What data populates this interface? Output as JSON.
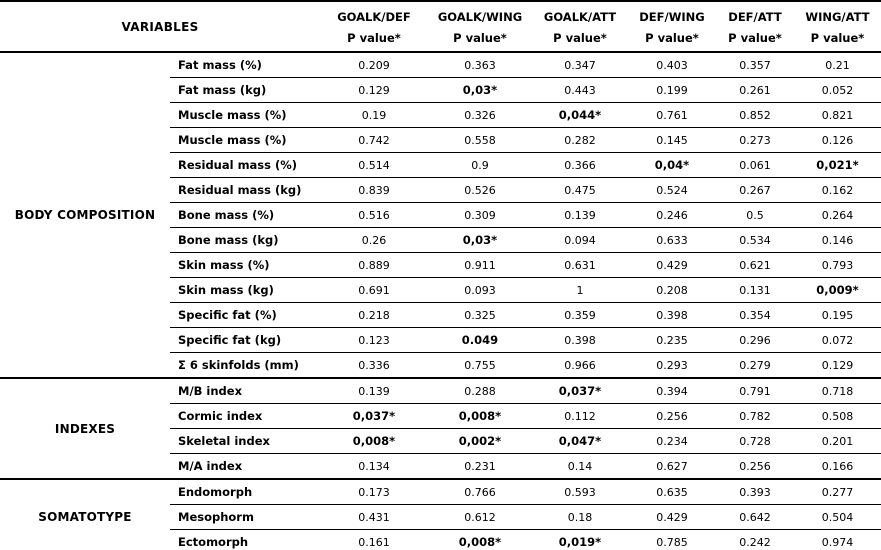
{
  "page": {
    "background_color": "#ffffff",
    "text_color": "#000000"
  },
  "chart_data": {
    "type": "table",
    "variables_label": "VARIABLES",
    "subheader": "P value*",
    "comparisons": [
      "GOALK/DEF",
      "GOALK/WING",
      "GOALK/ATT",
      "DEF/WING",
      "DEF/ATT",
      "WING/ATT"
    ],
    "groups": [
      {
        "name": "BODY COMPOSITION",
        "rows": [
          {
            "label": "Fat mass (%)",
            "values": [
              "0.209",
              "0.363",
              "0.347",
              "0.403",
              "0.357",
              "0.21"
            ],
            "bold": [
              false,
              false,
              false,
              false,
              false,
              false
            ]
          },
          {
            "label": "Fat mass (kg)",
            "values": [
              "0.129",
              "0,03*",
              "0.443",
              "0.199",
              "0.261",
              "0.052"
            ],
            "bold": [
              false,
              true,
              false,
              false,
              false,
              false
            ]
          },
          {
            "label": "Muscle mass (%)",
            "values": [
              "0.19",
              "0.326",
              "0,044*",
              "0.761",
              "0.852",
              "0.821"
            ],
            "bold": [
              false,
              false,
              true,
              false,
              false,
              false
            ]
          },
          {
            "label": "Muscle mass (%)",
            "values": [
              "0.742",
              "0.558",
              "0.282",
              "0.145",
              "0.273",
              "0.126"
            ],
            "bold": [
              false,
              false,
              false,
              false,
              false,
              false
            ]
          },
          {
            "label": "Residual mass (%)",
            "values": [
              "0.514",
              "0.9",
              "0.366",
              "0,04*",
              "0.061",
              "0,021*"
            ],
            "bold": [
              false,
              false,
              false,
              true,
              false,
              true
            ]
          },
          {
            "label": "Residual mass (kg)",
            "values": [
              "0.839",
              "0.526",
              "0.475",
              "0.524",
              "0.267",
              "0.162"
            ],
            "bold": [
              false,
              false,
              false,
              false,
              false,
              false
            ]
          },
          {
            "label": "Bone mass (%)",
            "values": [
              "0.516",
              "0.309",
              "0.139",
              "0.246",
              "0.5",
              "0.264"
            ],
            "bold": [
              false,
              false,
              false,
              false,
              false,
              false
            ]
          },
          {
            "label": "Bone mass (kg)",
            "values": [
              "0.26",
              "0,03*",
              "0.094",
              "0.633",
              "0.534",
              "0.146"
            ],
            "bold": [
              false,
              true,
              false,
              false,
              false,
              false
            ]
          },
          {
            "label": "Skin mass (%)",
            "values": [
              "0.889",
              "0.911",
              "0.631",
              "0.429",
              "0.621",
              "0.793"
            ],
            "bold": [
              false,
              false,
              false,
              false,
              false,
              false
            ]
          },
          {
            "label": "Skin mass (kg)",
            "values": [
              "0.691",
              "0.093",
              "1",
              "0.208",
              "0.131",
              "0,009*"
            ],
            "bold": [
              false,
              false,
              false,
              false,
              false,
              true
            ]
          },
          {
            "label": "Specific fat (%)",
            "values": [
              "0.218",
              "0.325",
              "0.359",
              "0.398",
              "0.354",
              "0.195"
            ],
            "bold": [
              false,
              false,
              false,
              false,
              false,
              false
            ]
          },
          {
            "label": "Specific fat (kg)",
            "values": [
              "0.123",
              "0.049",
              "0.398",
              "0.235",
              "0.296",
              "0.072"
            ],
            "bold": [
              false,
              true,
              false,
              false,
              false,
              false
            ]
          },
          {
            "label": "Σ 6 skinfolds (mm)",
            "values": [
              "0.336",
              "0.755",
              "0.966",
              "0.293",
              "0.279",
              "0.129"
            ],
            "bold": [
              false,
              false,
              false,
              false,
              false,
              false
            ]
          }
        ]
      },
      {
        "name": "INDEXES",
        "rows": [
          {
            "label": "M/B index",
            "values": [
              "0.139",
              "0.288",
              "0,037*",
              "0.394",
              "0.791",
              "0.718"
            ],
            "bold": [
              false,
              false,
              true,
              false,
              false,
              false
            ]
          },
          {
            "label": "Cormic index",
            "values": [
              "0,037*",
              "0,008*",
              "0.112",
              "0.256",
              "0.782",
              "0.508"
            ],
            "bold": [
              true,
              true,
              false,
              false,
              false,
              false
            ]
          },
          {
            "label": "Skeletal index",
            "values": [
              "0,008*",
              "0,002*",
              "0,047*",
              "0.234",
              "0.728",
              "0.201"
            ],
            "bold": [
              true,
              true,
              true,
              false,
              false,
              false
            ]
          },
          {
            "label": "M/A index",
            "values": [
              "0.134",
              "0.231",
              "0.14",
              "0.627",
              "0.256",
              "0.166"
            ],
            "bold": [
              false,
              false,
              false,
              false,
              false,
              false
            ]
          }
        ]
      },
      {
        "name": "SOMATOTYPE",
        "rows": [
          {
            "label": "Endomorph",
            "values": [
              "0.173",
              "0.766",
              "0.593",
              "0.635",
              "0.393",
              "0.277"
            ],
            "bold": [
              false,
              false,
              false,
              false,
              false,
              false
            ]
          },
          {
            "label": "Mesophorm",
            "values": [
              "0.431",
              "0.612",
              "0.18",
              "0.429",
              "0.642",
              "0.504"
            ],
            "bold": [
              false,
              false,
              false,
              false,
              false,
              false
            ]
          },
          {
            "label": "Ectomorph",
            "values": [
              "0.161",
              "0,008*",
              "0,019*",
              "0.785",
              "0.242",
              "0.974"
            ],
            "bold": [
              false,
              true,
              true,
              false,
              false,
              false
            ]
          }
        ]
      }
    ]
  }
}
